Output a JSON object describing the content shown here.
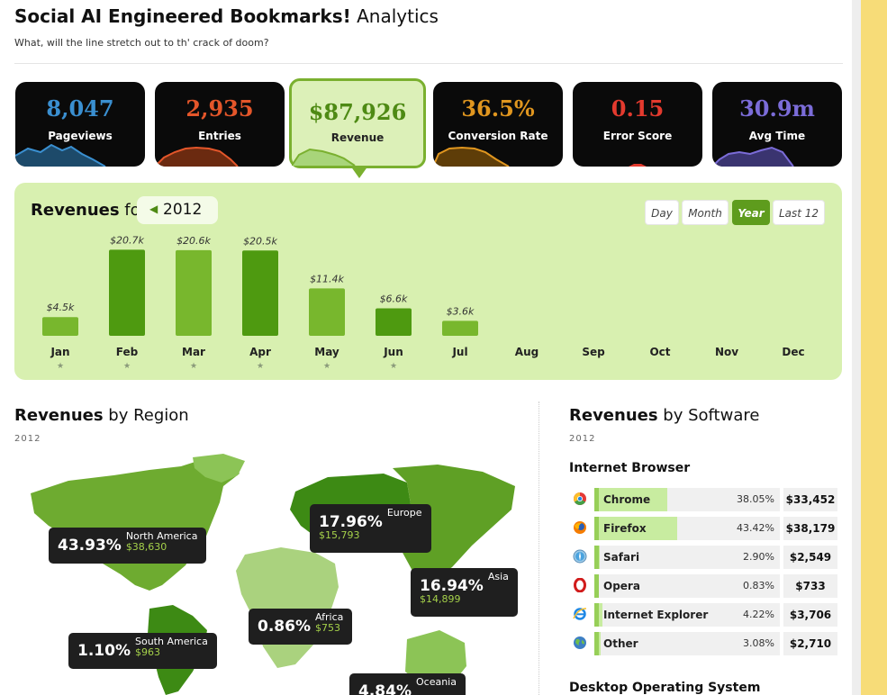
{
  "header": {
    "title_bold": "Social AI Engineered Bookmarks!",
    "title_rest": "Analytics",
    "subtitle": "What, will the line stretch out to th' crack of doom?"
  },
  "kpis": [
    {
      "value": "8,047",
      "label": "Pageviews",
      "color": "#3a8fd0"
    },
    {
      "value": "2,935",
      "label": "Entries",
      "color": "#e4562a"
    },
    {
      "value": "$87,926",
      "label": "Revenue",
      "color": "#4e8a14",
      "active": true
    },
    {
      "value": "36.5%",
      "label": "Conversion Rate",
      "color": "#e0961f"
    },
    {
      "value": "0.15",
      "label": "Error Score",
      "color": "#e33a2e"
    },
    {
      "value": "30.9m",
      "label": "Avg Time",
      "color": "#7b6cd8"
    }
  ],
  "revenues_panel": {
    "title_bold": "Revenues",
    "title_rest": "for",
    "year": "2012",
    "periods": [
      "Day",
      "Month",
      "Year",
      "Last 12"
    ],
    "selected_period": "Year"
  },
  "chart_data": {
    "type": "bar",
    "categories": [
      "Jan",
      "Feb",
      "Mar",
      "Apr",
      "May",
      "Jun",
      "Jul",
      "Aug",
      "Sep",
      "Oct",
      "Nov",
      "Dec"
    ],
    "values": [
      4.5,
      20.7,
      20.6,
      20.5,
      11.4,
      6.6,
      3.6,
      null,
      null,
      null,
      null,
      null
    ],
    "value_labels": [
      "$4.5k",
      "$20.7k",
      "$20.6k",
      "$20.5k",
      "$11.4k",
      "$6.6k",
      "$3.6k",
      "",
      "",
      "",
      "",
      ""
    ],
    "starred": [
      true,
      true,
      true,
      true,
      true,
      true,
      false,
      false,
      false,
      false,
      false,
      false
    ],
    "star_glyph": "★",
    "bar_colors": [
      "#78b72d",
      "#4e9a10"
    ],
    "ylim": [
      0,
      21
    ]
  },
  "region": {
    "title_bold": "Revenues",
    "title_rest": "by Region",
    "year": "2012",
    "callouts": [
      {
        "id": "north-america",
        "pct": "43.93%",
        "name": "North America",
        "amount": "$38,630"
      },
      {
        "id": "europe",
        "pct": "17.96%",
        "name": "Europe",
        "amount": "$15,793"
      },
      {
        "id": "asia",
        "pct": "16.94%",
        "name": "Asia",
        "amount": "$14,899"
      },
      {
        "id": "africa",
        "pct": "0.86%",
        "name": "Africa",
        "amount": "$753"
      },
      {
        "id": "south-america",
        "pct": "1.10%",
        "name": "South America",
        "amount": "$963"
      },
      {
        "id": "oceania",
        "pct": "4.84%",
        "name": "Oceania",
        "amount": ""
      }
    ]
  },
  "software": {
    "title_bold": "Revenues",
    "title_rest": "by Software",
    "year": "2012",
    "browser_title": "Internet Browser",
    "browsers": [
      {
        "name": "Chrome",
        "pct": "38.05%",
        "amount": "$33,452",
        "share": 38.05,
        "icon": "chrome-icon"
      },
      {
        "name": "Firefox",
        "pct": "43.42%",
        "amount": "$38,179",
        "share": 43.42,
        "icon": "firefox-icon"
      },
      {
        "name": "Safari",
        "pct": "2.90%",
        "amount": "$2,549",
        "share": 2.9,
        "icon": "safari-icon"
      },
      {
        "name": "Opera",
        "pct": "0.83%",
        "amount": "$733",
        "share": 0.83,
        "icon": "opera-icon"
      },
      {
        "name": "Internet Explorer",
        "pct": "4.22%",
        "amount": "$3,706",
        "share": 4.22,
        "icon": "internet-explorer-icon"
      },
      {
        "name": "Other",
        "pct": "3.08%",
        "amount": "$2,710",
        "share": 3.08,
        "icon": "globe-icon"
      }
    ],
    "os_title": "Desktop Operating System"
  }
}
